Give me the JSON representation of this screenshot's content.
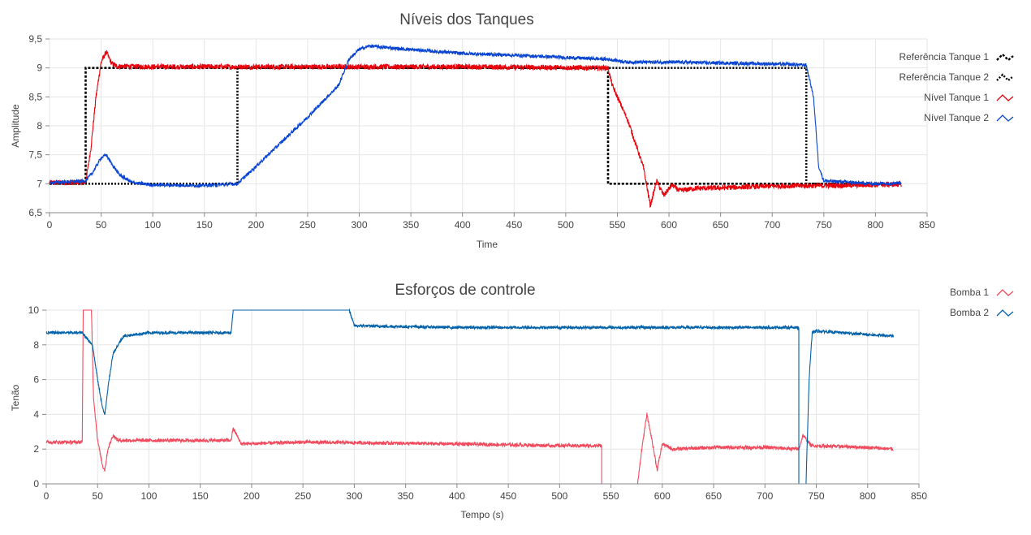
{
  "chart_data": [
    {
      "type": "line",
      "title": "Níveis dos Tanques",
      "xlabel": "Time",
      "ylabel": "Amplitude",
      "xlim": [
        0,
        850
      ],
      "ylim": [
        6.5,
        9.5
      ],
      "xticks": [
        "0",
        "50",
        "100",
        "150",
        "200",
        "250",
        "300",
        "350",
        "400",
        "450",
        "500",
        "550",
        "600",
        "650",
        "700",
        "750",
        "800",
        "850"
      ],
      "yticks": [
        "6,5",
        "7",
        "7,5",
        "8",
        "8,5",
        "9",
        "9,5"
      ],
      "legend_position": "right",
      "series": [
        {
          "name": "Referência Tanque 1",
          "color": "#000000",
          "style": "dashed",
          "points": [
            [
              0,
              7.0
            ],
            [
              35,
              7.0
            ],
            [
              35,
              9.0
            ],
            [
              541,
              9.0
            ],
            [
              541,
              7.0
            ],
            [
              825,
              7.0
            ]
          ]
        },
        {
          "name": "Referência Tanque 2",
          "color": "#000000",
          "style": "dotted",
          "points": [
            [
              0,
              7.0
            ],
            [
              182,
              7.0
            ],
            [
              182,
              9.0
            ],
            [
              733,
              9.0
            ],
            [
              733,
              7.0
            ],
            [
              825,
              7.0
            ]
          ]
        },
        {
          "name": "Nível Tanque 1",
          "color": "#e8000b",
          "points": [
            [
              0,
              7.02
            ],
            [
              35,
              7.02
            ],
            [
              40,
              7.6
            ],
            [
              45,
              8.5
            ],
            [
              50,
              9.1
            ],
            [
              55,
              9.28
            ],
            [
              60,
              9.08
            ],
            [
              65,
              9.03
            ],
            [
              100,
              9.02
            ],
            [
              300,
              9.02
            ],
            [
              400,
              9.02
            ],
            [
              541,
              9.0
            ],
            [
              545,
              8.7
            ],
            [
              560,
              8.1
            ],
            [
              575,
              7.3
            ],
            [
              582,
              6.62
            ],
            [
              588,
              7.05
            ],
            [
              595,
              6.8
            ],
            [
              603,
              6.98
            ],
            [
              610,
              6.88
            ],
            [
              625,
              6.92
            ],
            [
              650,
              6.93
            ],
            [
              700,
              6.96
            ],
            [
              760,
              6.97
            ],
            [
              825,
              6.99
            ]
          ]
        },
        {
          "name": "Nível Tanque 2",
          "color": "#0a45d2",
          "points": [
            [
              0,
              7.02
            ],
            [
              35,
              7.05
            ],
            [
              42,
              7.2
            ],
            [
              50,
              7.45
            ],
            [
              55,
              7.5
            ],
            [
              60,
              7.35
            ],
            [
              68,
              7.15
            ],
            [
              80,
              7.02
            ],
            [
              100,
              6.98
            ],
            [
              150,
              6.97
            ],
            [
              182,
              7.0
            ],
            [
              200,
              7.3
            ],
            [
              250,
              8.15
            ],
            [
              280,
              8.7
            ],
            [
              290,
              9.15
            ],
            [
              300,
              9.32
            ],
            [
              310,
              9.38
            ],
            [
              340,
              9.33
            ],
            [
              400,
              9.25
            ],
            [
              450,
              9.22
            ],
            [
              500,
              9.18
            ],
            [
              541,
              9.15
            ],
            [
              560,
              9.1
            ],
            [
              600,
              9.1
            ],
            [
              700,
              9.07
            ],
            [
              733,
              9.05
            ],
            [
              740,
              8.5
            ],
            [
              745,
              7.3
            ],
            [
              750,
              7.05
            ],
            [
              800,
              7.0
            ],
            [
              825,
              7.02
            ]
          ]
        }
      ]
    },
    {
      "type": "line",
      "title": "Esforços de controle",
      "xlabel": "Tempo (s)",
      "ylabel": "Tenão",
      "xlim": [
        0,
        850
      ],
      "ylim": [
        0,
        10
      ],
      "xticks": [
        "0",
        "50",
        "100",
        "150",
        "200",
        "250",
        "300",
        "350",
        "400",
        "450",
        "500",
        "550",
        "600",
        "650",
        "700",
        "750",
        "800",
        "850"
      ],
      "yticks": [
        "0",
        "2",
        "4",
        "6",
        "8",
        "10"
      ],
      "legend_position": "top-right",
      "series": [
        {
          "name": "Bomba 1",
          "color": "#f2495c",
          "points": [
            [
              0,
              2.4
            ],
            [
              35,
              2.4
            ],
            [
              36,
              10.0
            ],
            [
              44,
              10.0
            ],
            [
              46,
              5.0
            ],
            [
              50,
              2.5
            ],
            [
              55,
              1.0
            ],
            [
              57,
              0.8
            ],
            [
              60,
              2.0
            ],
            [
              65,
              2.8
            ],
            [
              70,
              2.5
            ],
            [
              100,
              2.5
            ],
            [
              180,
              2.5
            ],
            [
              182,
              3.2
            ],
            [
              190,
              2.3
            ],
            [
              250,
              2.4
            ],
            [
              400,
              2.3
            ],
            [
              500,
              2.2
            ],
            [
              541,
              2.2
            ],
            [
              541,
              0.0
            ],
            [
              576,
              0.0
            ],
            [
              580,
              2.0
            ],
            [
              585,
              4.0
            ],
            [
              590,
              2.5
            ],
            [
              595,
              0.8
            ],
            [
              600,
              2.3
            ],
            [
              610,
              2.0
            ],
            [
              650,
              2.1
            ],
            [
              700,
              2.1
            ],
            [
              733,
              2.0
            ],
            [
              737,
              2.8
            ],
            [
              745,
              2.2
            ],
            [
              800,
              2.1
            ],
            [
              825,
              2.0
            ]
          ]
        },
        {
          "name": "Bomba 2",
          "color": "#0061a8",
          "points": [
            [
              0,
              8.7
            ],
            [
              35,
              8.7
            ],
            [
              45,
              8.0
            ],
            [
              50,
              6.0
            ],
            [
              55,
              4.3
            ],
            [
              57,
              4.0
            ],
            [
              60,
              5.5
            ],
            [
              65,
              7.5
            ],
            [
              75,
              8.5
            ],
            [
              100,
              8.7
            ],
            [
              180,
              8.7
            ],
            [
              182,
              10.0
            ],
            [
              295,
              10.0
            ],
            [
              300,
              9.1
            ],
            [
              400,
              9.0
            ],
            [
              500,
              9.0
            ],
            [
              600,
              9.0
            ],
            [
              700,
              9.0
            ],
            [
              733,
              9.0
            ],
            [
              733,
              0.0
            ],
            [
              740,
              0.0
            ],
            [
              743,
              6.0
            ],
            [
              746,
              8.7
            ],
            [
              750,
              8.8
            ],
            [
              800,
              8.6
            ],
            [
              825,
              8.5
            ]
          ]
        }
      ]
    }
  ]
}
